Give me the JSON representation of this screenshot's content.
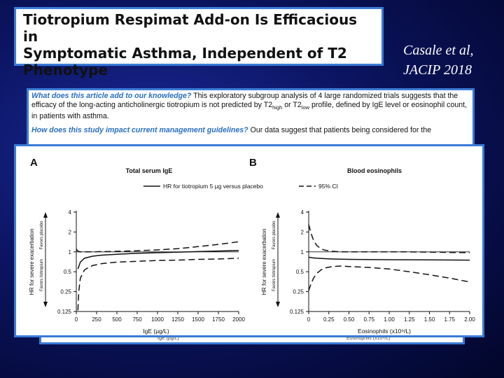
{
  "title": {
    "line1": "Tiotropium Respimat Add-on Is Efficacious in",
    "line2": "Symptomatic Asthma, Independent of T2",
    "line3": "Phenotype"
  },
  "citation": {
    "line1": "Casale et al,",
    "line2": "JACIP 2018"
  },
  "summary": {
    "q1": "What does this article add to our knowledge?",
    "a1_part1": " This exploratory subgroup analysis of 4 large randomized trials suggests that the efficacy of the long-acting anticholinergic tiotropium is not predicted by T2",
    "sub_high": "high",
    "a1_part2": " or T2",
    "sub_low": "low",
    "a1_part3": " profile, defined by IgE level or eosinophil count, in patients with asthma.",
    "q2": "How does this study impact current management guidelines?",
    "a2": " Our data suggest that patients being considered for the"
  },
  "behind": {
    "xlabel_a": "IgE (µg/L)",
    "xlabel_b": "Eosinophils (x10⁹/L)"
  },
  "legend": {
    "solid": "HR for tiotropium 5 µg versus placebo",
    "dashed": "95% CI"
  },
  "shared_axis": {
    "ylabel": "HR for severe exacerbation",
    "favors_placebo": "Favors placebo",
    "favors_tiotropium": "Favors tiotropium"
  },
  "chart_data": [
    {
      "type": "line",
      "panel": "A",
      "title": "Total serum IgE",
      "xlabel": "IgE (µg/L)",
      "ylabel": "HR for severe exacerbation",
      "yscale": "log2",
      "xlim": [
        0,
        2000
      ],
      "ylim": [
        0.125,
        4
      ],
      "xticks": [
        0,
        250,
        500,
        750,
        1000,
        1250,
        1500,
        1750,
        2000
      ],
      "yticks": [
        4,
        2,
        1,
        0.5,
        0.25,
        0.125
      ],
      "ytick_labels": [
        "4",
        "2",
        "1",
        "0.5",
        "0.25",
        "0.125"
      ],
      "reference_line": 1,
      "series": [
        {
          "name": "HR for tiotropium 5 µg versus placebo",
          "style": "solid",
          "x": [
            20,
            50,
            100,
            200,
            300,
            500,
            750,
            1000,
            1250,
            1500,
            1750,
            2000
          ],
          "y": [
            0.55,
            0.7,
            0.8,
            0.86,
            0.89,
            0.92,
            0.95,
            0.97,
            0.99,
            1.01,
            1.03,
            1.05
          ]
        },
        {
          "name": "95% CI",
          "style": "dashed",
          "x": [
            0,
            10,
            20,
            40,
            70,
            100,
            150,
            200,
            300,
            400,
            500,
            750,
            1000,
            1250,
            1500,
            1750,
            2000
          ],
          "y": [
            1.1,
            1.06,
            1.03,
            1.0,
            1.0,
            1.0,
            1.0,
            1.0,
            1.01,
            1.01,
            1.02,
            1.04,
            1.07,
            1.12,
            1.2,
            1.3,
            1.42
          ]
        },
        {
          "name": "95% CI",
          "style": "dashed",
          "x": [
            20,
            30,
            50,
            100,
            150,
            200,
            300,
            500,
            750,
            1000,
            1250,
            1500,
            1750,
            2000
          ],
          "y": [
            0.13,
            0.25,
            0.4,
            0.53,
            0.58,
            0.62,
            0.66,
            0.7,
            0.72,
            0.74,
            0.75,
            0.77,
            0.78,
            0.8
          ]
        }
      ]
    },
    {
      "type": "line",
      "panel": "B",
      "title": "Blood eosinophils",
      "xlabel": "Eosinophils (x10⁹/L)",
      "ylabel": "HR for severe exacerbation",
      "yscale": "log2",
      "xlim": [
        0,
        2.0
      ],
      "ylim": [
        0.125,
        4
      ],
      "xticks": [
        0,
        0.25,
        0.5,
        0.75,
        1.0,
        1.25,
        1.5,
        1.75,
        2.0
      ],
      "xtick_labels": [
        "0",
        "0.25",
        "0.50",
        "0.75",
        "1.00",
        "1.25",
        "1.50",
        "1.75",
        "2.00"
      ],
      "yticks": [
        4,
        2,
        1,
        0.5,
        0.25,
        0.125
      ],
      "ytick_labels": [
        "4",
        "2",
        "1",
        "0.5",
        "0.25",
        "0.125"
      ],
      "reference_line": 1,
      "series": [
        {
          "name": "HR for tiotropium 5 µg versus placebo",
          "style": "solid",
          "x": [
            0,
            0.05,
            0.1,
            0.2,
            0.3,
            0.5,
            1.0,
            1.5,
            2.0
          ],
          "y": [
            0.83,
            0.81,
            0.8,
            0.79,
            0.78,
            0.77,
            0.76,
            0.755,
            0.75
          ]
        },
        {
          "name": "95% CI",
          "style": "dashed",
          "x": [
            0,
            0.03,
            0.06,
            0.1,
            0.15,
            0.2,
            0.3,
            0.4,
            0.5,
            0.75,
            1.0,
            1.25,
            1.5,
            1.75,
            2.0
          ],
          "y": [
            2.6,
            1.9,
            1.5,
            1.25,
            1.12,
            1.06,
            1.02,
            1.0,
            1.0,
            1.0,
            1.0,
            1.0,
            0.99,
            0.98,
            0.97
          ]
        },
        {
          "name": "95% CI",
          "style": "dashed",
          "x": [
            0,
            0.03,
            0.06,
            0.1,
            0.15,
            0.2,
            0.3,
            0.4,
            0.5,
            0.75,
            1.0,
            1.25,
            1.5,
            1.75,
            2.0
          ],
          "y": [
            0.26,
            0.33,
            0.4,
            0.47,
            0.53,
            0.57,
            0.6,
            0.61,
            0.6,
            0.58,
            0.55,
            0.5,
            0.45,
            0.4,
            0.35
          ]
        }
      ]
    }
  ]
}
